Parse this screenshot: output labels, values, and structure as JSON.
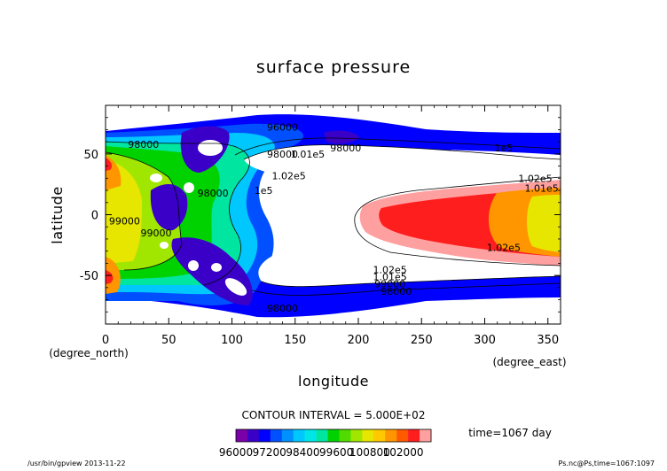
{
  "chart_data": {
    "type": "heatmap",
    "title": "surface pressure",
    "xlabel": "longitude",
    "xunits": "(degree_east)",
    "ylabel": "latitude",
    "yunits": "(degree_north)",
    "xlim": [
      0,
      360
    ],
    "ylim": [
      -90,
      90
    ],
    "x_ticks": [
      0,
      50,
      100,
      150,
      200,
      250,
      300,
      350
    ],
    "y_ticks": [
      -50,
      0,
      50
    ],
    "contour_interval_text": "CONTOUR INTERVAL = 5.000E+02",
    "time_text": "time=1067 day",
    "colorbar": {
      "min": 96000,
      "max": 102500,
      "step": 500,
      "labels": [
        "96000",
        "97200",
        "98400",
        "99600",
        "100800",
        "102000"
      ],
      "colors": [
        "#7a00aa",
        "#3a00c8",
        "#0000ff",
        "#0050ff",
        "#0090ff",
        "#00c8ff",
        "#00e6e6",
        "#00e6a0",
        "#00d200",
        "#50dc00",
        "#a0e600",
        "#e6e600",
        "#ffc800",
        "#ff9600",
        "#ff5a00",
        "#ff1e1e",
        "#ffa0a0"
      ]
    },
    "contour_labels": [
      {
        "text": "96000",
        "lon": 140,
        "lat": 72
      },
      {
        "text": "98000",
        "lon": 30,
        "lat": 58
      },
      {
        "text": "98000",
        "lon": 140,
        "lat": 50
      },
      {
        "text": "1.01e5",
        "lon": 160,
        "lat": 50
      },
      {
        "text": "1.02e5",
        "lon": 145,
        "lat": 32
      },
      {
        "text": "1e5",
        "lon": 125,
        "lat": 20
      },
      {
        "text": "98000",
        "lon": 85,
        "lat": 18
      },
      {
        "text": "99000",
        "lon": 15,
        "lat": -5
      },
      {
        "text": "99000",
        "lon": 40,
        "lat": -15
      },
      {
        "text": "98000",
        "lon": 190,
        "lat": 55
      },
      {
        "text": "1e5",
        "lon": 315,
        "lat": 55
      },
      {
        "text": "1.02e5",
        "lon": 340,
        "lat": 30
      },
      {
        "text": "1.01e5",
        "lon": 345,
        "lat": 22
      },
      {
        "text": "1.02e5",
        "lon": 315,
        "lat": -27
      },
      {
        "text": "1.02e5",
        "lon": 225,
        "lat": -45
      },
      {
        "text": "1.01e5",
        "lon": 225,
        "lat": -51
      },
      {
        "text": "99000",
        "lon": 225,
        "lat": -57
      },
      {
        "text": "98000",
        "lon": 230,
        "lat": -63
      },
      {
        "text": "98000",
        "lon": 140,
        "lat": -77
      }
    ]
  },
  "footer": {
    "program": "/usr/bin/gpview  2013-11-22",
    "source": "Ps.nc@Ps,time=1067:1097"
  }
}
